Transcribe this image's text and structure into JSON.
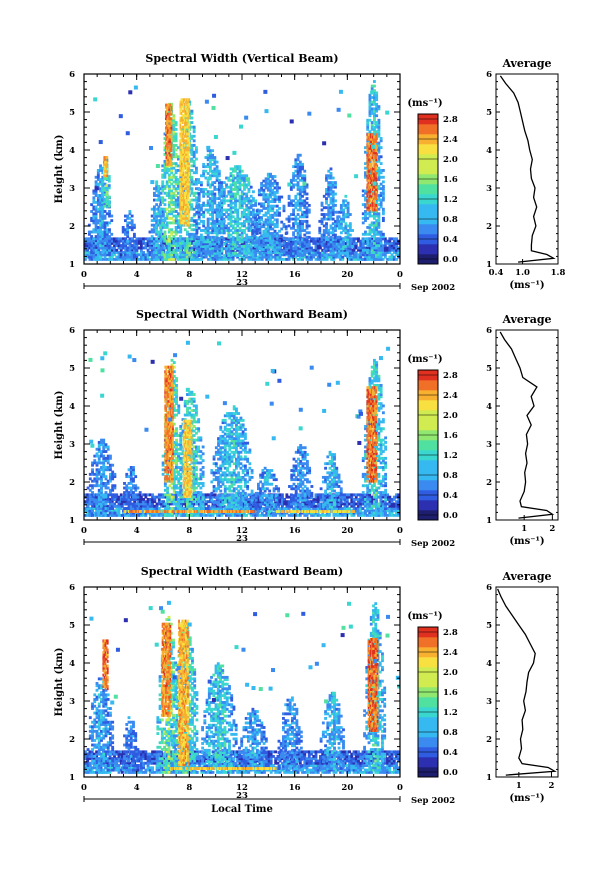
{
  "layout": {
    "panel_count": 3
  },
  "chart_data": [
    {
      "type": "heatmap",
      "title": "Spectral Width (Vertical Beam)",
      "xlabel": "",
      "ylabel": "Height (km)",
      "xticks": [
        "0",
        "4",
        "8",
        "12",
        "16",
        "20",
        "0"
      ],
      "xlim": [
        0,
        24
      ],
      "yticks": [
        "1",
        "2",
        "3",
        "4",
        "5",
        "6"
      ],
      "ylim": [
        1,
        6
      ],
      "day_label": "23",
      "date_label": "Sep 2002",
      "colorbar": {
        "unit": "(ms⁻¹)",
        "ticks": [
          "0.0",
          "0.4",
          "0.8",
          "1.2",
          "1.6",
          "2.0",
          "2.4",
          "2.8"
        ],
        "range": [
          0,
          3.0
        ]
      },
      "profile": {
        "title": "Average",
        "xlabel": "(ms⁻¹)",
        "xticks": [
          "0.4",
          "1.0",
          "1.8"
        ],
        "xlim": [
          0.4,
          1.8
        ],
        "heights": [
          1.05,
          1.15,
          1.25,
          1.35,
          1.5,
          1.75,
          2.0,
          2.25,
          2.5,
          2.75,
          3.0,
          3.25,
          3.5,
          3.75,
          4.0,
          4.25,
          4.5,
          4.75,
          5.0,
          5.25,
          5.5,
          5.75,
          5.95
        ],
        "values": [
          0.9,
          1.7,
          1.55,
          1.2,
          1.2,
          1.22,
          1.3,
          1.25,
          1.32,
          1.25,
          1.28,
          1.2,
          1.18,
          1.22,
          1.16,
          1.12,
          1.05,
          1.0,
          0.95,
          0.9,
          0.8,
          0.62,
          0.5
        ]
      },
      "blobs": [
        {
          "t": 1.2,
          "h0": 1.1,
          "h1": 3.6,
          "w": 0.9,
          "v": 1.1
        },
        {
          "t": 1.6,
          "h0": 2.5,
          "h1": 3.8,
          "w": 0.3,
          "v": 1.8
        },
        {
          "t": 3.3,
          "h0": 1.1,
          "h1": 2.4,
          "w": 0.6,
          "v": 0.9
        },
        {
          "t": 5.5,
          "h0": 1.1,
          "h1": 3.2,
          "w": 0.6,
          "v": 1.2
        },
        {
          "t": 6.5,
          "h0": 1.1,
          "h1": 5.3,
          "w": 0.8,
          "v": 1.9
        },
        {
          "t": 7.8,
          "h0": 1.1,
          "h1": 5.3,
          "w": 0.9,
          "v": 1.6
        },
        {
          "t": 9.5,
          "h0": 1.2,
          "h1": 4.0,
          "w": 1.2,
          "v": 1.2
        },
        {
          "t": 11.5,
          "h0": 1.2,
          "h1": 3.6,
          "w": 1.8,
          "v": 1.4
        },
        {
          "t": 14.0,
          "h0": 1.3,
          "h1": 3.4,
          "w": 1.3,
          "v": 1.1
        },
        {
          "t": 16.2,
          "h0": 1.2,
          "h1": 3.9,
          "w": 0.9,
          "v": 1.0
        },
        {
          "t": 18.6,
          "h0": 1.2,
          "h1": 3.5,
          "w": 0.8,
          "v": 1.0
        },
        {
          "t": 19.7,
          "h0": 1.2,
          "h1": 2.8,
          "w": 0.6,
          "v": 1.3
        },
        {
          "t": 21.9,
          "h0": 1.1,
          "h1": 5.8,
          "w": 0.8,
          "v": 1.4
        }
      ],
      "hot": [
        {
          "t": 6.4,
          "h0": 3.6,
          "h1": 5.2,
          "w": 0.25,
          "v": 2.8
        },
        {
          "t": 7.6,
          "h0": 2.0,
          "h1": 5.3,
          "w": 0.35,
          "v": 2.5
        },
        {
          "t": 21.8,
          "h0": 2.4,
          "h1": 4.4,
          "w": 0.35,
          "v": 2.9
        },
        {
          "t": 1.6,
          "h0": 3.3,
          "h1": 3.8,
          "w": 0.15,
          "v": 2.6
        }
      ]
    },
    {
      "type": "heatmap",
      "title": "Spectral Width (Northward Beam)",
      "xlabel": "",
      "ylabel": "Height (km)",
      "xticks": [
        "0",
        "4",
        "8",
        "12",
        "16",
        "20",
        "0"
      ],
      "xlim": [
        0,
        24
      ],
      "yticks": [
        "1",
        "2",
        "3",
        "4",
        "5",
        "6"
      ],
      "ylim": [
        1,
        6
      ],
      "day_label": "23",
      "date_label": "Sep 2002",
      "colorbar": {
        "unit": "(ms⁻¹)",
        "ticks": [
          "0.0",
          "0.4",
          "0.8",
          "1.2",
          "1.6",
          "2.0",
          "2.4",
          "2.8"
        ],
        "range": [
          0,
          3.0
        ]
      },
      "profile": {
        "title": "Average",
        "xlabel": "(ms⁻¹)",
        "xticks": [
          "1",
          "2"
        ],
        "xlim": [
          0,
          2.2
        ],
        "heights": [
          1.05,
          1.15,
          1.25,
          1.35,
          1.5,
          1.75,
          2.0,
          2.25,
          2.5,
          2.75,
          3.0,
          3.25,
          3.5,
          3.75,
          4.0,
          4.25,
          4.5,
          4.75,
          5.0,
          5.25,
          5.5,
          5.75,
          5.95
        ],
        "values": [
          0.8,
          2.0,
          1.8,
          0.9,
          0.85,
          1.0,
          1.05,
          1.02,
          1.1,
          1.05,
          1.12,
          1.08,
          1.25,
          1.1,
          1.35,
          1.25,
          1.45,
          0.95,
          0.85,
          0.7,
          0.55,
          0.3,
          0.15
        ]
      },
      "blobs": [
        {
          "t": 1.3,
          "h0": 1.1,
          "h1": 3.1,
          "w": 1.1,
          "v": 1.0
        },
        {
          "t": 3.5,
          "h0": 1.1,
          "h1": 2.4,
          "w": 0.7,
          "v": 0.9
        },
        {
          "t": 6.6,
          "h0": 1.1,
          "h1": 5.3,
          "w": 0.7,
          "v": 1.9
        },
        {
          "t": 8.0,
          "h0": 1.1,
          "h1": 4.4,
          "w": 1.1,
          "v": 1.6
        },
        {
          "t": 11.2,
          "h0": 1.2,
          "h1": 4.0,
          "w": 1.6,
          "v": 1.3
        },
        {
          "t": 13.8,
          "h0": 1.2,
          "h1": 2.4,
          "w": 1.0,
          "v": 1.1
        },
        {
          "t": 16.4,
          "h0": 1.2,
          "h1": 3.0,
          "w": 0.9,
          "v": 1.0
        },
        {
          "t": 18.7,
          "h0": 1.2,
          "h1": 2.8,
          "w": 0.8,
          "v": 1.2
        },
        {
          "t": 22.0,
          "h0": 1.1,
          "h1": 5.2,
          "w": 0.9,
          "v": 1.5
        }
      ],
      "hot": [
        {
          "t": 6.4,
          "h0": 2.0,
          "h1": 5.0,
          "w": 0.3,
          "v": 2.8
        },
        {
          "t": 7.8,
          "h0": 1.6,
          "h1": 3.6,
          "w": 0.3,
          "v": 2.5
        },
        {
          "t": 21.8,
          "h0": 2.0,
          "h1": 4.5,
          "w": 0.35,
          "v": 2.9
        },
        {
          "t": 8.0,
          "h0": 1.2,
          "h1": 1.25,
          "w": 5.0,
          "v": 2.7
        },
        {
          "t": 17.5,
          "h0": 1.2,
          "h1": 1.25,
          "w": 3.0,
          "v": 2.4
        }
      ]
    },
    {
      "type": "heatmap",
      "title": "Spectral Width (Eastward Beam)",
      "xlabel": "Local Time",
      "ylabel": "Height (km)",
      "xticks": [
        "0",
        "4",
        "8",
        "12",
        "16",
        "20",
        "0"
      ],
      "xlim": [
        0,
        24
      ],
      "yticks": [
        "1",
        "2",
        "3",
        "4",
        "5",
        "6"
      ],
      "ylim": [
        1,
        6
      ],
      "day_label": "23",
      "date_label": "Sep 2002",
      "colorbar": {
        "unit": "(ms⁻¹)",
        "ticks": [
          "0.0",
          "0.4",
          "0.8",
          "1.2",
          "1.6",
          "2.0",
          "2.4",
          "2.8"
        ],
        "range": [
          0,
          3.0
        ]
      },
      "profile": {
        "title": "Average",
        "xlabel": "(ms⁻¹)",
        "xticks": [
          "1",
          "2"
        ],
        "xlim": [
          0.3,
          2.2
        ],
        "heights": [
          1.05,
          1.15,
          1.25,
          1.35,
          1.5,
          1.75,
          2.0,
          2.25,
          2.5,
          2.75,
          3.0,
          3.25,
          3.5,
          3.75,
          4.0,
          4.25,
          4.5,
          4.75,
          5.0,
          5.25,
          5.5,
          5.75,
          5.95
        ],
        "values": [
          0.6,
          2.1,
          1.9,
          1.1,
          1.0,
          1.08,
          1.05,
          1.12,
          1.1,
          1.2,
          1.15,
          1.22,
          1.25,
          1.3,
          1.45,
          1.5,
          1.35,
          1.2,
          1.0,
          0.8,
          0.6,
          0.45,
          0.35
        ]
      },
      "blobs": [
        {
          "t": 1.2,
          "h0": 1.1,
          "h1": 3.6,
          "w": 1.0,
          "v": 1.1
        },
        {
          "t": 3.4,
          "h0": 1.1,
          "h1": 2.6,
          "w": 0.6,
          "v": 0.9
        },
        {
          "t": 6.3,
          "h0": 1.1,
          "h1": 5.2,
          "w": 0.8,
          "v": 1.9
        },
        {
          "t": 7.6,
          "h0": 1.1,
          "h1": 5.0,
          "w": 1.0,
          "v": 1.7
        },
        {
          "t": 10.2,
          "h0": 1.2,
          "h1": 4.0,
          "w": 1.3,
          "v": 1.4
        },
        {
          "t": 12.8,
          "h0": 1.2,
          "h1": 2.8,
          "w": 1.1,
          "v": 1.1
        },
        {
          "t": 15.6,
          "h0": 1.2,
          "h1": 3.1,
          "w": 0.9,
          "v": 1.0
        },
        {
          "t": 18.8,
          "h0": 1.2,
          "h1": 3.2,
          "w": 0.9,
          "v": 1.2
        },
        {
          "t": 22.0,
          "h0": 1.1,
          "h1": 5.6,
          "w": 0.8,
          "v": 1.5
        }
      ],
      "hot": [
        {
          "t": 1.6,
          "h0": 3.3,
          "h1": 4.6,
          "w": 0.2,
          "v": 2.9
        },
        {
          "t": 6.2,
          "h0": 2.6,
          "h1": 5.0,
          "w": 0.3,
          "v": 2.8
        },
        {
          "t": 7.5,
          "h0": 1.3,
          "h1": 5.1,
          "w": 0.35,
          "v": 2.6
        },
        {
          "t": 21.9,
          "h0": 2.2,
          "h1": 4.6,
          "w": 0.35,
          "v": 2.9
        },
        {
          "t": 10.5,
          "h0": 1.2,
          "h1": 1.25,
          "w": 4.0,
          "v": 2.5
        }
      ]
    }
  ]
}
